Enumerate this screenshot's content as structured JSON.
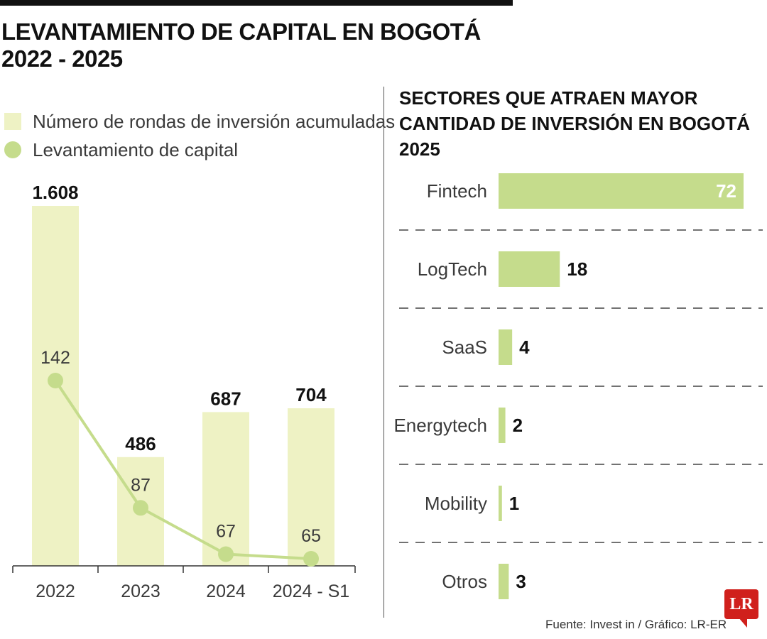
{
  "title": "LEVANTAMIENTO DE CAPITAL EN BOGOTÁ\n2022 - 2025",
  "colors": {
    "bar_fill": "#eef2c4",
    "line_color": "#c5dc8c",
    "hbar_fill": "#c5dc8c",
    "text_dark": "#111111",
    "text_gray": "#3a3a3a",
    "logo_red": "#d0201c"
  },
  "chart_data": [
    {
      "type": "bar",
      "title": "",
      "categories": [
        "2022",
        "2023",
        "2024",
        "2024 - S1"
      ],
      "series": [
        {
          "name": "Número de rondas de inversión acumuladas",
          "type": "bar",
          "values": [
            1608,
            486,
            687,
            704
          ],
          "labels": [
            "1.608",
            "486",
            "687",
            "704"
          ]
        },
        {
          "name": "Levantamiento de capital",
          "type": "line",
          "values": [
            142,
            87,
            67,
            65
          ],
          "labels": [
            "142",
            "87",
            "67",
            "65"
          ]
        }
      ],
      "legend": "top-left",
      "grid": false
    },
    {
      "type": "bar",
      "orientation": "horizontal",
      "title": "SECTORES QUE ATRAEN MAYOR\nCANTIDAD DE INVERSIÓN EN BOGOTÁ\n2025",
      "categories": [
        "Fintech",
        "LogTech",
        "SaaS",
        "Energytech",
        "Mobility",
        "Otros"
      ],
      "values": [
        72,
        18,
        4,
        2,
        1,
        3
      ],
      "labels": [
        "72",
        "18",
        "4",
        "2",
        "1",
        "3"
      ],
      "xlim": [
        0,
        72
      ],
      "grid": false
    }
  ],
  "source": "Fuente: Invest in / Gráfico: LR-ER",
  "logo": "LR"
}
